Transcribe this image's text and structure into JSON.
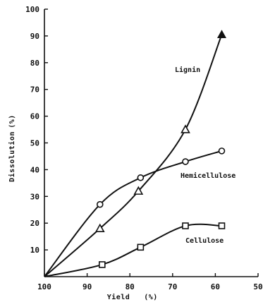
{
  "chart_data": {
    "type": "line",
    "xlabel": "Yield",
    "xlabel_unit": "(%)",
    "ylabel": "Dissolution",
    "ylabel_unit": "(%)",
    "xlim": [
      100,
      50
    ],
    "ylim": [
      0,
      100
    ],
    "x_ticks": [
      100,
      90,
      80,
      70,
      60,
      50
    ],
    "y_ticks": [
      10,
      20,
      30,
      40,
      50,
      60,
      70,
      80,
      90,
      100
    ],
    "series": [
      {
        "name": "Lignin",
        "marker": "triangle",
        "x": [
          100,
          87,
          78,
          67,
          58.5
        ],
        "y": [
          0,
          18,
          32,
          55,
          90.5
        ]
      },
      {
        "name": "Hemicellulose",
        "marker": "circle",
        "x": [
          100,
          87,
          77.5,
          67,
          58.5
        ],
        "y": [
          0,
          27,
          37,
          43,
          47
        ]
      },
      {
        "name": "Cellulose",
        "marker": "square",
        "x": [
          100,
          86.5,
          77.5,
          67,
          58.5
        ],
        "y": [
          0,
          4.5,
          11,
          19,
          19
        ]
      }
    ]
  }
}
